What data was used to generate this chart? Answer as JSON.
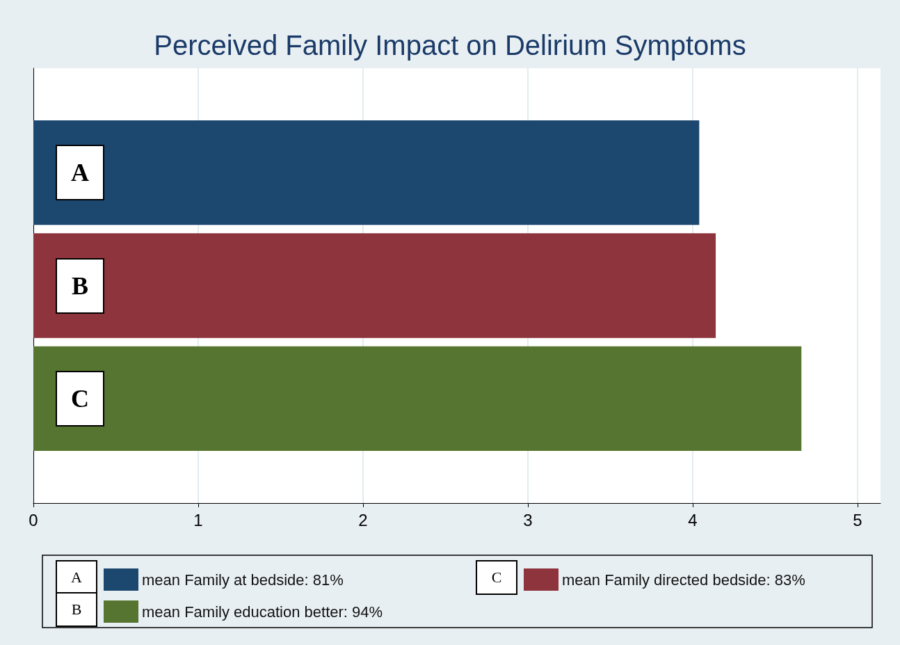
{
  "chart_data": {
    "type": "bar",
    "title": "Perceived Family Impact on Delirium Symptoms",
    "orientation": "horizontal",
    "categories": [
      null
    ],
    "series": [
      {
        "name": "mean Family at bedside: 81%",
        "color": "#1c4870",
        "values": [
          4.04
        ]
      },
      {
        "name": "mean Family directed bedside: 83%",
        "color": "#8e343c",
        "values": [
          4.14
        ]
      },
      {
        "name": "mean Family education better: 94%",
        "color": "#567530",
        "values": [
          4.66
        ]
      }
    ],
    "xlim": [
      0,
      5.14
    ],
    "xticks": [
      0,
      1,
      2,
      3,
      4,
      5
    ],
    "grid": "x",
    "legend": "bottom",
    "annotations": [
      "A",
      "B",
      "C",
      "A",
      "C",
      "B"
    ]
  }
}
